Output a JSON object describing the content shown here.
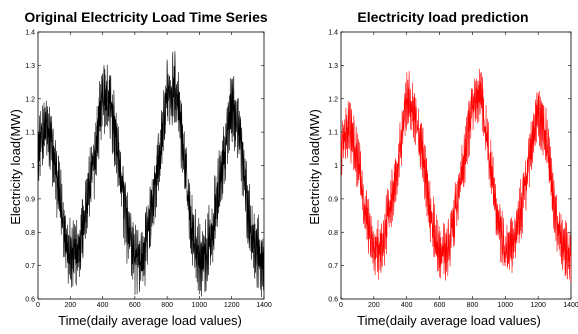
{
  "chart_data": [
    {
      "type": "line",
      "title": "Original Electricity Load Time Series",
      "xlabel": "Time(daily  average  load  values)",
      "ylabel": "Electricity load(MW)",
      "xlim": [
        0,
        1400
      ],
      "ylim": [
        0.6,
        1.4
      ],
      "xticks": [
        "0",
        "200",
        "400",
        "600",
        "800",
        "1000",
        "1200",
        "1400"
      ],
      "yticks": [
        "0.6",
        "0.7",
        "0.8",
        "0.9",
        "1",
        "1.1",
        "1.2",
        "1.3",
        "1.4"
      ],
      "grid": false,
      "series": [
        {
          "color": "#000000",
          "x": [
            0,
            50,
            100,
            150,
            200,
            250,
            300,
            350,
            400,
            450,
            500,
            550,
            600,
            650,
            700,
            750,
            800,
            850,
            900,
            950,
            1000,
            1050,
            1100,
            1150,
            1200,
            1250,
            1300,
            1350,
            1400
          ],
          "values": [
            1.05,
            1.12,
            1.02,
            0.85,
            0.72,
            0.74,
            0.88,
            1.02,
            1.22,
            1.18,
            1.02,
            0.82,
            0.72,
            0.72,
            0.86,
            1.02,
            1.2,
            1.25,
            1.05,
            0.82,
            0.72,
            0.74,
            0.87,
            1.02,
            1.18,
            1.1,
            0.86,
            0.75,
            0.7
          ],
          "noise": 0.075
        }
      ]
    },
    {
      "type": "line",
      "title": "Electricity load prediction",
      "xlabel": "Time(daily  average  load  values)",
      "ylabel": "Electricity load(MW)",
      "xlim": [
        0,
        1400
      ],
      "ylim": [
        0.6,
        1.4
      ],
      "xticks": [
        "0",
        "200",
        "400",
        "600",
        "800",
        "1000",
        "1200",
        "1400"
      ],
      "yticks": [
        "0.6",
        "0.7",
        "0.8",
        "0.9",
        "1",
        "1.1",
        "1.2",
        "1.3",
        "1.4"
      ],
      "grid": false,
      "series": [
        {
          "color": "#ff0000",
          "x": [
            0,
            50,
            100,
            150,
            200,
            250,
            300,
            350,
            400,
            450,
            500,
            550,
            600,
            650,
            700,
            750,
            800,
            850,
            900,
            950,
            1000,
            1050,
            1100,
            1150,
            1200,
            1250,
            1300,
            1350,
            1400
          ],
          "values": [
            1.05,
            1.12,
            1.02,
            0.86,
            0.74,
            0.76,
            0.88,
            1.02,
            1.2,
            1.16,
            1.02,
            0.84,
            0.74,
            0.74,
            0.87,
            1.02,
            1.18,
            1.22,
            1.04,
            0.84,
            0.74,
            0.76,
            0.88,
            1.02,
            1.16,
            1.08,
            0.86,
            0.76,
            0.72
          ],
          "noise": 0.06
        }
      ]
    }
  ]
}
